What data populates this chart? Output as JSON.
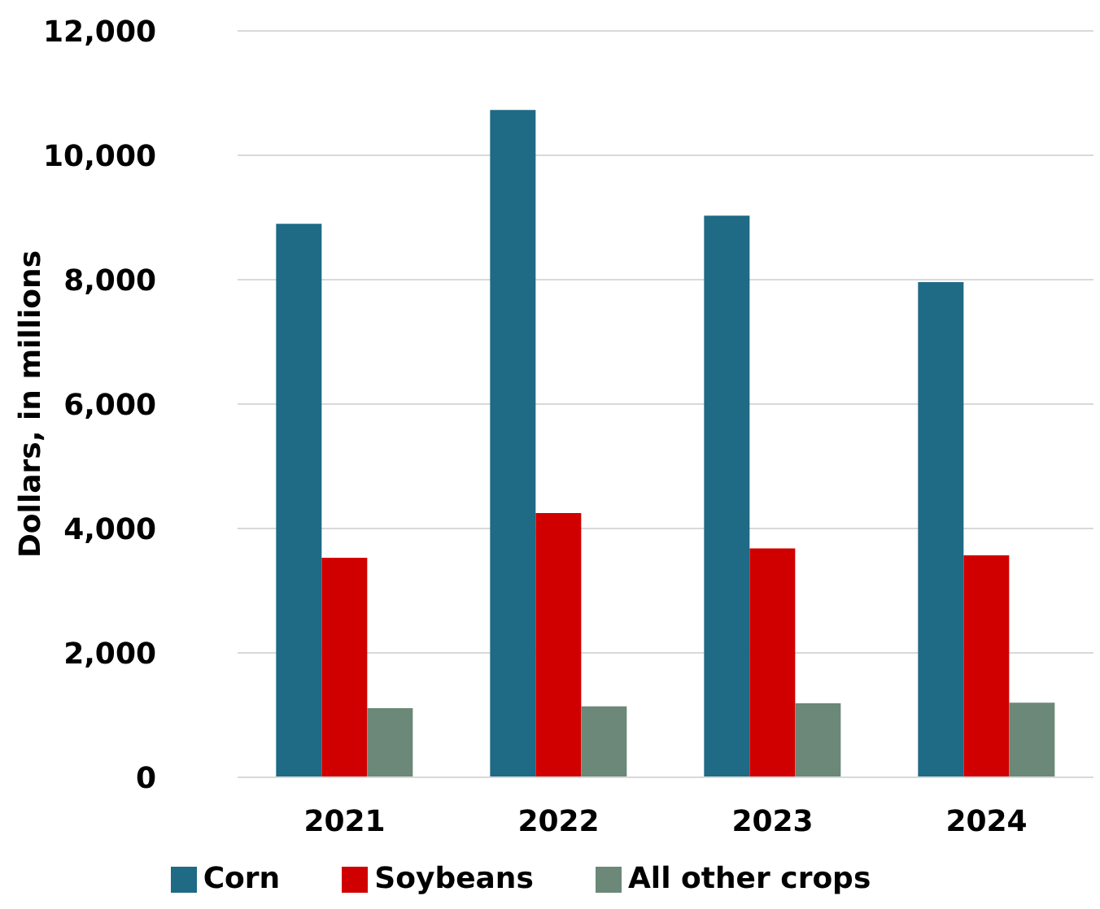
{
  "chart_data": {
    "type": "bar",
    "ylabel": "Dollars, in millions",
    "categories": [
      "2021",
      "2022",
      "2023",
      "2024"
    ],
    "series": [
      {
        "name": "Corn",
        "color": "#1f6a84",
        "values": [
          8900,
          10730,
          9030,
          7960
        ]
      },
      {
        "name": "Soybeans",
        "color": "#d10000",
        "values": [
          3530,
          4250,
          3680,
          3570
        ]
      },
      {
        "name": "All other crops",
        "color": "#6b8878",
        "values": [
          1110,
          1140,
          1190,
          1200
        ]
      }
    ],
    "ylim": [
      0,
      12000
    ],
    "yticks": [
      0,
      {
        "value": 2000,
        "label": "2,000"
      },
      {
        "value": 4000,
        "label": "4,000"
      },
      {
        "value": 6000,
        "label": "6,000"
      },
      {
        "value": 8000,
        "label": "8,000"
      },
      {
        "value": 10000,
        "label": "10,000"
      },
      {
        "value": 12000,
        "label": "12,000"
      }
    ],
    "grid": "y",
    "legend": "bottom"
  }
}
